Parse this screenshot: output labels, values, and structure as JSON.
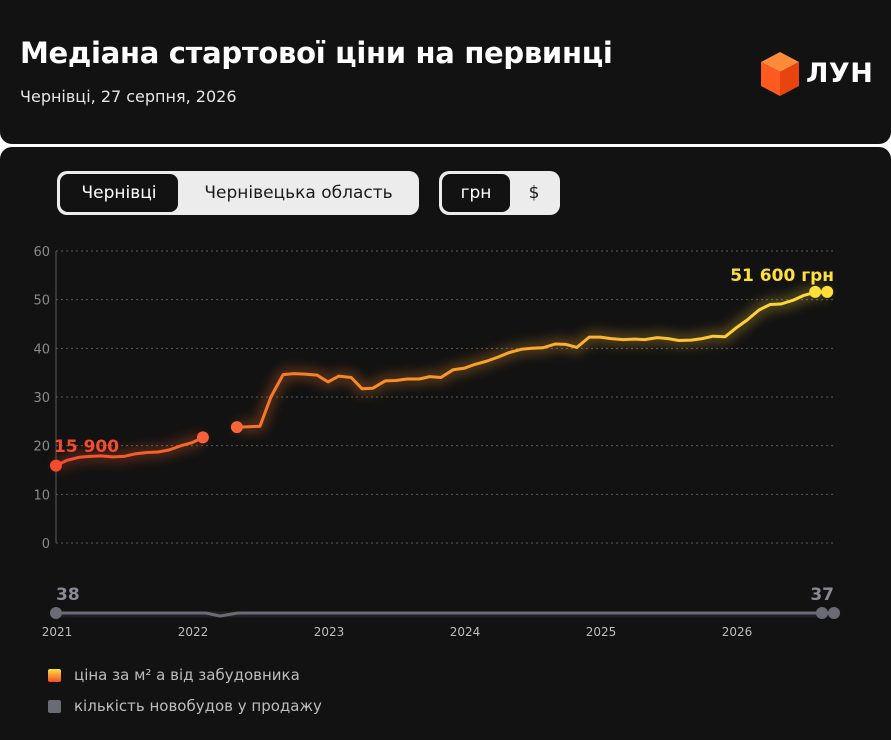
{
  "header": {
    "title": "Медіана стартової ціни на первинці",
    "subtitle": "Чернівці, 27 серпня, 2026",
    "logo_text": "ЛУН"
  },
  "region_toggle": [
    {
      "label": "Чернівці",
      "active": true
    },
    {
      "label": "Чернівецька область",
      "active": false
    }
  ],
  "currency_toggle": [
    {
      "label": "грн",
      "active": true
    },
    {
      "label": "$",
      "active": false
    }
  ],
  "chart_data": {
    "type": "line",
    "y_ticks": [
      "60",
      "50",
      "40",
      "30",
      "20",
      "10",
      "0"
    ],
    "ylim": [
      0,
      60
    ],
    "x_ticks": [
      "2021",
      "2022",
      "2023",
      "2024",
      "2025",
      "2026"
    ],
    "grid": true,
    "series": [
      {
        "name": "ціна за м² а від забудовника",
        "segments": [
          [
            [
              2021.0,
              15.9
            ],
            [
              2021.08,
              17.0
            ],
            [
              2021.17,
              17.6
            ],
            [
              2021.25,
              17.8
            ],
            [
              2021.33,
              17.9
            ],
            [
              2021.42,
              17.7
            ],
            [
              2021.5,
              17.8
            ],
            [
              2021.58,
              18.3
            ],
            [
              2021.67,
              18.6
            ],
            [
              2021.75,
              18.7
            ],
            [
              2021.83,
              19.1
            ],
            [
              2021.92,
              20.0
            ],
            [
              2022.0,
              20.6
            ],
            [
              2022.08,
              21.7
            ]
          ],
          [
            [
              2022.33,
              23.8
            ],
            [
              2022.42,
              23.9
            ],
            [
              2022.5,
              24.0
            ],
            [
              2022.58,
              30.0
            ],
            [
              2022.67,
              34.6
            ],
            [
              2022.75,
              34.8
            ],
            [
              2022.83,
              34.7
            ],
            [
              2022.92,
              34.5
            ],
            [
              2023.0,
              33.1
            ],
            [
              2023.08,
              34.3
            ],
            [
              2023.17,
              34.0
            ],
            [
              2023.25,
              31.7
            ],
            [
              2023.33,
              31.8
            ],
            [
              2023.42,
              33.3
            ],
            [
              2023.5,
              33.4
            ],
            [
              2023.58,
              33.7
            ],
            [
              2023.67,
              33.7
            ],
            [
              2023.75,
              34.2
            ],
            [
              2023.83,
              34.0
            ],
            [
              2023.92,
              35.6
            ],
            [
              2024.0,
              35.9
            ],
            [
              2024.08,
              36.7
            ],
            [
              2024.17,
              37.4
            ],
            [
              2024.25,
              38.2
            ],
            [
              2024.33,
              39.1
            ],
            [
              2024.42,
              39.8
            ],
            [
              2024.5,
              40.0
            ],
            [
              2024.58,
              40.1
            ],
            [
              2024.67,
              40.9
            ],
            [
              2024.75,
              40.8
            ],
            [
              2024.83,
              40.2
            ],
            [
              2024.92,
              42.3
            ],
            [
              2025.0,
              42.3
            ],
            [
              2025.08,
              42.0
            ],
            [
              2025.17,
              41.8
            ],
            [
              2025.25,
              41.9
            ],
            [
              2025.33,
              41.8
            ],
            [
              2025.42,
              42.2
            ],
            [
              2025.5,
              42.0
            ],
            [
              2025.58,
              41.6
            ],
            [
              2025.67,
              41.7
            ],
            [
              2025.75,
              42.0
            ],
            [
              2025.83,
              42.5
            ],
            [
              2025.92,
              42.4
            ],
            [
              2026.0,
              44.2
            ],
            [
              2026.08,
              45.8
            ],
            [
              2026.17,
              47.9
            ],
            [
              2026.25,
              49.0
            ],
            [
              2026.33,
              49.1
            ],
            [
              2026.42,
              49.9
            ],
            [
              2026.5,
              50.9
            ],
            [
              2026.58,
              51.5
            ],
            [
              2026.67,
              51.6
            ]
          ]
        ],
        "start_label": "15 900",
        "end_label": "51 600 грн"
      },
      {
        "name": "кількість новобудов у продажу",
        "start_label": "38",
        "end_label": "37"
      }
    ],
    "colors": {
      "start": "#f44d2e",
      "mid": "#fb8a25",
      "end": "#ffe03a",
      "count": "#6b6b75"
    }
  }
}
